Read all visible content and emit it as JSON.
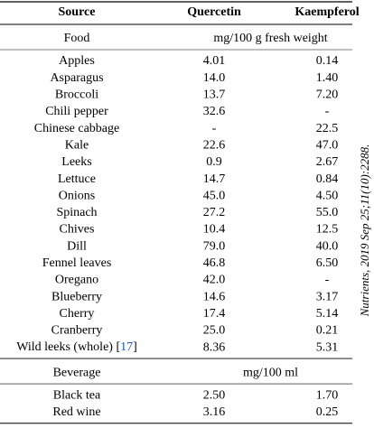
{
  "header": [
    "Source",
    "Quercetin",
    "Kaempferol"
  ],
  "sections": [
    {
      "label": "Food",
      "unit": "mg/100 g fresh weight",
      "rows": [
        [
          "Apples",
          "4.01",
          "0.14"
        ],
        [
          "Asparagus",
          "14.0",
          "1.40"
        ],
        [
          "Broccoli",
          "13.7",
          "7.20"
        ],
        [
          "Chili pepper",
          "32.6",
          "-"
        ],
        [
          "Chinese cabbage",
          "-",
          "22.5"
        ],
        [
          "Kale",
          "22.6",
          "47.0"
        ],
        [
          "Leeks",
          "0.9",
          "2.67"
        ],
        [
          "Lettuce",
          "14.7",
          "0.84"
        ],
        [
          "Onions",
          "45.0",
          "4.50"
        ],
        [
          "Spinach",
          "27.2",
          "55.0"
        ],
        [
          "Chives",
          "10.4",
          "12.5"
        ],
        [
          "Dill",
          "79.0",
          "40.0"
        ],
        [
          "Fennel leaves",
          "46.8",
          "6.50"
        ],
        [
          "Oregano",
          "42.0",
          "-"
        ],
        [
          "Blueberry",
          "14.6",
          "3.17"
        ],
        [
          "Cherry",
          "17.4",
          "5.14"
        ],
        [
          "Cranberry",
          "25.0",
          "0.21"
        ],
        [
          [
            "Wild leeks (whole) [",
            "17",
            "]"
          ],
          "8.36",
          "5.31"
        ]
      ]
    },
    {
      "label": "Beverage",
      "unit": "mg/100 ml",
      "rows": [
        [
          "Black tea",
          "2.50",
          "1.70"
        ],
        [
          "Red wine",
          "3.16",
          "0.25"
        ]
      ]
    }
  ],
  "citation": "Nutrients, 2019 Sep 25;11(10):2288."
}
